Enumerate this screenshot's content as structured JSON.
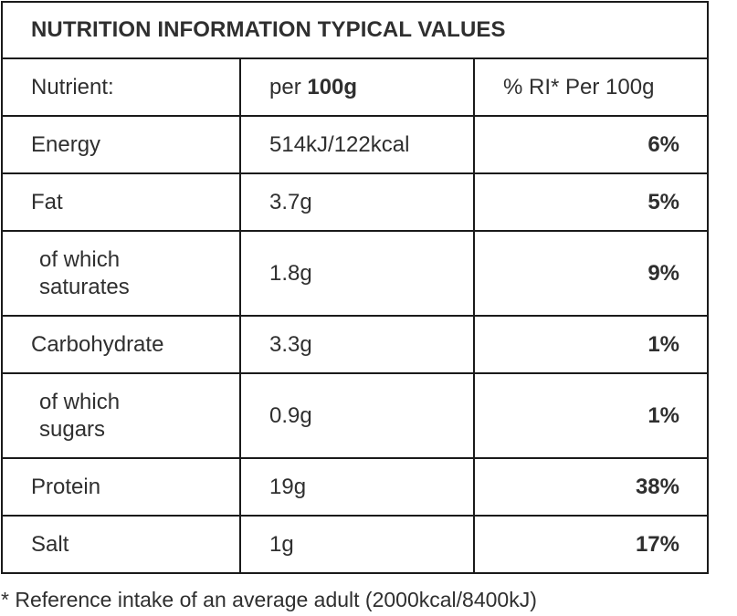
{
  "title": "NUTRITION INFORMATION TYPICAL VALUES",
  "header": {
    "nutrient": "Nutrient:",
    "per_prefix": "per ",
    "per_amount": "100g",
    "ri": "% RI* Per 100g"
  },
  "rows": [
    {
      "nutrient": "Energy",
      "per100g": "514kJ/122kcal",
      "ri": "6%"
    },
    {
      "nutrient": "Fat",
      "per100g": "3.7g",
      "ri": "5%"
    },
    {
      "nutrient_line1": "of which",
      "nutrient_line2": "saturates",
      "per100g": "1.8g",
      "ri": "9%"
    },
    {
      "nutrient": "Carbohydrate",
      "per100g": "3.3g",
      "ri": "1%"
    },
    {
      "nutrient_line1": "of which",
      "nutrient_line2": "sugars",
      "per100g": "0.9g",
      "ri": "1%"
    },
    {
      "nutrient": "Protein",
      "per100g": "19g",
      "ri": "38%"
    },
    {
      "nutrient": "Salt",
      "per100g": "1g",
      "ri": "17%"
    }
  ],
  "footnote": "* Reference intake of an average adult (2000kcal/8400kJ)"
}
